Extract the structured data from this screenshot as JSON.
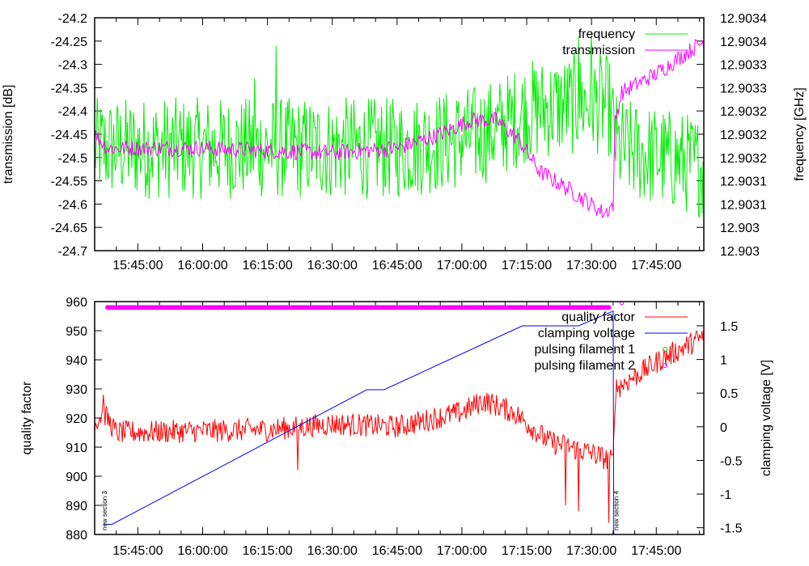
{
  "chart_data": {
    "type": "line",
    "panels": [
      {
        "ylabel": "transmission [dB]",
        "y2label": "frequency [GHz]",
        "xlim": [
          "15:35",
          "17:56"
        ],
        "ylim": [
          -24.7,
          -24.2
        ],
        "y2lim": [
          12.903,
          12.9035
        ],
        "yticks": [
          "-24.2",
          "-24.25",
          "-24.3",
          "-24.35",
          "-24.4",
          "-24.45",
          "-24.5",
          "-24.55",
          "-24.6",
          "-24.65",
          "-24.7"
        ],
        "y2ticks": [
          "12.9034",
          "12.9034",
          "12.9033",
          "12.9033",
          "12.9032",
          "12.9032",
          "12.9032",
          "12.9031",
          "12.9031",
          "12.903",
          "12.903"
        ],
        "xticks": [
          "15:45:00",
          "16:00:00",
          "16:15:00",
          "16:30:00",
          "16:45:00",
          "17:00:00",
          "17:15:00",
          "17:30:00",
          "17:45:00"
        ],
        "legend": "top-right",
        "series": [
          {
            "name": "frequency",
            "axis": "y2",
            "color": "#00ee00",
            "samples_per_min": 5,
            "noise": 0.00011,
            "keypoints": [
              [
                "15:35",
                12.90322
              ],
              [
                "16:45",
                12.90322
              ],
              [
                "17:00",
                12.90324
              ],
              [
                "17:08",
                12.90326
              ],
              [
                "17:15",
                12.9033
              ],
              [
                "17:30",
                12.90332
              ],
              [
                "17:34",
                12.90331
              ],
              [
                "17:36",
                12.90322
              ],
              [
                "17:56",
                12.90318
              ]
            ],
            "spikes": [
              [
                "16:12",
                12.90337
              ],
              [
                "16:17",
                12.90344
              ],
              [
                "17:27",
                12.90346
              ],
              [
                "17:30",
                12.90347
              ]
            ]
          },
          {
            "name": "transmission",
            "axis": "y",
            "color": "#ff00ff",
            "samples_per_min": 4,
            "noise": 0.018,
            "keypoints": [
              [
                "15:35",
                -24.45
              ],
              [
                "15:38",
                -24.48
              ],
              [
                "16:00",
                -24.48
              ],
              [
                "16:30",
                -24.49
              ],
              [
                "16:45",
                -24.48
              ],
              [
                "16:55",
                -24.45
              ],
              [
                "17:02",
                -24.42
              ],
              [
                "17:08",
                -24.42
              ],
              [
                "17:13",
                -24.46
              ],
              [
                "17:18",
                -24.53
              ],
              [
                "17:25",
                -24.57
              ],
              [
                "17:33",
                -24.62
              ],
              [
                "17:35",
                -24.6
              ],
              [
                "17:35:30",
                -24.42
              ],
              [
                "17:37",
                -24.36
              ],
              [
                "17:45",
                -24.32
              ],
              [
                "17:56",
                -24.25
              ]
            ],
            "spikes": []
          }
        ]
      },
      {
        "ylabel": "quality factor",
        "y2label": "clamping voltage [V]",
        "xlim": [
          "15:35",
          "17:56"
        ],
        "ylim": [
          880,
          960
        ],
        "y2lim": [
          -1.6,
          1.86
        ],
        "yticks": [
          "960",
          "950",
          "940",
          "930",
          "920",
          "910",
          "900",
          "890",
          "880"
        ],
        "y2ticks": [
          "1.5",
          "1",
          "0.5",
          "0",
          "-0.5",
          "-1",
          "-1.5"
        ],
        "xticks": [
          "15:45:00",
          "16:00:00",
          "16:15:00",
          "16:30:00",
          "16:45:00",
          "17:00:00",
          "17:15:00",
          "17:30:00",
          "17:45:00"
        ],
        "legend": "top-right",
        "series": [
          {
            "name": "quality factor",
            "axis": "y",
            "color": "#ff0000",
            "samples_per_min": 5,
            "noise": 4,
            "keypoints": [
              [
                "15:35",
                918
              ],
              [
                "15:37",
                922
              ],
              [
                "15:40",
                915
              ],
              [
                "16:15",
                916
              ],
              [
                "16:30",
                918
              ],
              [
                "16:45",
                917
              ],
              [
                "17:00",
                922
              ],
              [
                "17:05",
                926
              ],
              [
                "17:12",
                922
              ],
              [
                "17:20",
                912
              ],
              [
                "17:30",
                908
              ],
              [
                "17:35",
                905
              ],
              [
                "17:35:30",
                930
              ],
              [
                "17:46",
                940
              ],
              [
                "17:56",
                948
              ]
            ],
            "spikes": [
              [
                "15:37",
                928
              ],
              [
                "16:22",
                902
              ],
              [
                "17:24",
                890
              ],
              [
                "17:27",
                888
              ],
              [
                "17:34",
                884
              ]
            ]
          },
          {
            "name": "clamping voltage",
            "axis": "y2",
            "color": "#0000ff",
            "samples_per_min": 0,
            "keypoints": [
              [
                "15:37",
                -1.45
              ],
              [
                "15:39",
                -1.45
              ],
              [
                "16:38",
                0.55
              ],
              [
                "16:42",
                0.55
              ],
              [
                "17:14",
                1.5
              ],
              [
                "17:27",
                1.5
              ],
              [
                "17:35",
                1.72
              ],
              [
                "17:35:10",
                -1.6
              ]
            ],
            "spikes": []
          },
          {
            "name": "pulsing filament 1",
            "axis": "y",
            "color": "#00cc00",
            "marker": "circle",
            "points": []
          },
          {
            "name": "pulsing filament 2",
            "axis": "y",
            "color": "#ff00ff",
            "marker": "circle",
            "points_range": [
              "15:38",
              "17:34",
              958
            ],
            "points": [
              [
                "17:37",
                959.5
              ]
            ]
          }
        ],
        "annotations": [
          {
            "text": "new section 3",
            "x": "15:36:40"
          },
          {
            "text": "new section 4",
            "x": "17:35:10"
          }
        ]
      }
    ]
  }
}
